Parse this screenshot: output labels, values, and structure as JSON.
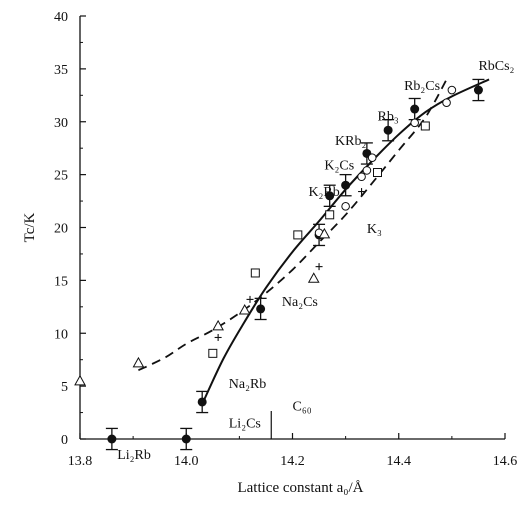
{
  "chart_data": {
    "type": "scatter",
    "xlabel": "Lattice constant a₀/Å",
    "ylabel": "Tc/K",
    "xlim": [
      13.8,
      14.6
    ],
    "ylim": [
      0,
      40
    ],
    "xticks": [
      "13.8",
      "14.0",
      "14.2",
      "14.4",
      "14.6"
    ],
    "yticks": [
      "0",
      "5",
      "10",
      "15",
      "20",
      "25",
      "30",
      "35",
      "40"
    ],
    "grid": false,
    "series": [
      {
        "marker": "filled-circle-errorbar",
        "points": [
          {
            "x": 13.86,
            "y": 0.0,
            "err": 1.0
          },
          {
            "x": 14.0,
            "y": 0.0,
            "err": 1.0
          },
          {
            "x": 14.03,
            "y": 3.5,
            "err": 1.0
          },
          {
            "x": 14.14,
            "y": 12.3,
            "err": 1.0
          },
          {
            "x": 14.25,
            "y": 19.3,
            "err": 1.0
          },
          {
            "x": 14.27,
            "y": 23.0,
            "err": 1.0
          },
          {
            "x": 14.3,
            "y": 24.0,
            "err": 1.0
          },
          {
            "x": 14.34,
            "y": 27.0,
            "err": 1.0
          },
          {
            "x": 14.38,
            "y": 29.2,
            "err": 1.0
          },
          {
            "x": 14.43,
            "y": 31.2,
            "err": 1.0
          },
          {
            "x": 14.55,
            "y": 33.0,
            "err": 1.0
          }
        ]
      },
      {
        "marker": "open-circle",
        "points": [
          {
            "x": 14.25,
            "y": 19.5
          },
          {
            "x": 14.3,
            "y": 22.0
          },
          {
            "x": 14.33,
            "y": 24.8
          },
          {
            "x": 14.34,
            "y": 25.4
          },
          {
            "x": 14.35,
            "y": 26.6
          },
          {
            "x": 14.43,
            "y": 29.9
          },
          {
            "x": 14.49,
            "y": 31.8
          },
          {
            "x": 14.5,
            "y": 33.0
          }
        ]
      },
      {
        "marker": "open-square",
        "points": [
          {
            "x": 14.05,
            "y": 8.1
          },
          {
            "x": 14.13,
            "y": 15.7
          },
          {
            "x": 14.21,
            "y": 19.3
          },
          {
            "x": 14.27,
            "y": 21.2
          },
          {
            "x": 14.36,
            "y": 25.2
          },
          {
            "x": 14.45,
            "y": 29.6
          }
        ]
      },
      {
        "marker": "open-triangle",
        "points": [
          {
            "x": 13.8,
            "y": 5.5
          },
          {
            "x": 13.91,
            "y": 7.2
          },
          {
            "x": 14.06,
            "y": 10.7
          },
          {
            "x": 14.11,
            "y": 12.2
          },
          {
            "x": 14.24,
            "y": 15.2
          },
          {
            "x": 14.26,
            "y": 19.4
          }
        ]
      },
      {
        "marker": "plus",
        "points": [
          {
            "x": 14.06,
            "y": 9.6
          },
          {
            "x": 14.12,
            "y": 13.2
          },
          {
            "x": 14.25,
            "y": 16.3
          },
          {
            "x": 14.33,
            "y": 23.4
          }
        ]
      }
    ],
    "curves": [
      {
        "style": "solid",
        "points": [
          [
            14.03,
            3.3
          ],
          [
            14.07,
            7.6
          ],
          [
            14.11,
            11.1
          ],
          [
            14.15,
            14.3
          ],
          [
            14.2,
            17.7
          ],
          [
            14.25,
            20.6
          ],
          [
            14.3,
            23.6
          ],
          [
            14.35,
            26.3
          ],
          [
            14.4,
            28.8
          ],
          [
            14.45,
            30.9
          ],
          [
            14.5,
            32.4
          ],
          [
            14.57,
            34.0
          ]
        ]
      },
      {
        "style": "dashed",
        "points": [
          [
            13.91,
            6.5
          ],
          [
            13.96,
            7.7
          ],
          [
            14.0,
            9.0
          ],
          [
            14.05,
            10.3
          ],
          [
            14.1,
            11.9
          ],
          [
            14.15,
            13.8
          ],
          [
            14.2,
            16.0
          ],
          [
            14.25,
            18.6
          ],
          [
            14.3,
            21.2
          ],
          [
            14.35,
            24.2
          ],
          [
            14.4,
            27.3
          ],
          [
            14.45,
            30.4
          ],
          [
            14.49,
            34.0
          ]
        ]
      }
    ],
    "annotations": [
      {
        "text": "RbCs₂",
        "x": 14.55,
        "y": 34.9
      },
      {
        "text": "Rb₂Cs",
        "x": 14.41,
        "y": 33.0
      },
      {
        "text": "Rb₃",
        "x": 14.36,
        "y": 30.1
      },
      {
        "text": "KRb₂",
        "x": 14.28,
        "y": 27.8
      },
      {
        "text": "K₂Cs",
        "x": 14.26,
        "y": 25.5
      },
      {
        "text": "K₂Rb",
        "x": 14.23,
        "y": 23.0
      },
      {
        "text": "K₃",
        "x": 14.34,
        "y": 19.5
      },
      {
        "text": "Na₂Cs",
        "x": 14.18,
        "y": 12.6
      },
      {
        "text": "Na₂Rb",
        "x": 14.08,
        "y": 4.8
      },
      {
        "text": "Li₂Cs",
        "x": 14.08,
        "y": 1.1
      },
      {
        "text": "Li₂Rb",
        "x": 13.87,
        "y": -1.9
      },
      {
        "text": "C₆₀",
        "x": 14.2,
        "y": 2.7
      }
    ],
    "c60_marker": {
      "x": 14.16
    }
  }
}
